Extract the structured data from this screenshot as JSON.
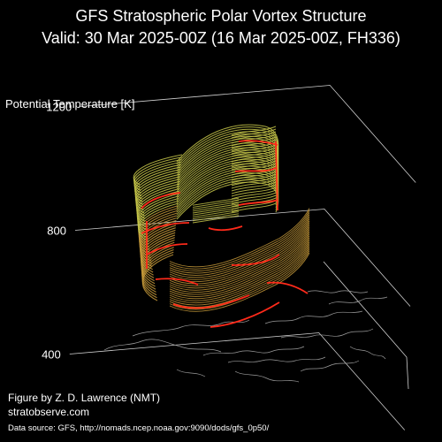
{
  "title_line1": "GFS Stratospheric Polar Vortex Structure",
  "title_line2": "Valid: 30 Mar 2025-00Z  (16 Mar 2025-00Z, FH336)",
  "credit_line1": "Figure by Z. D. Lawrence (NMT)",
  "credit_line2": "stratobserve.com",
  "data_source": "Data source: GFS, http://nomads.ncep.noaa.gov:9090/dods/gfs_0p50/",
  "colors": {
    "background": "#000000",
    "grid": "#d0d0d0",
    "coast": "#9a9a9a",
    "vortex_low": "#c79a3a",
    "vortex_high": "#c8c84a",
    "vortex_edge": "#ff2a1a"
  },
  "chart_data": {
    "type": "3d-isosurface",
    "zlabel": "Potential Temperature [K]",
    "z_ticks": [
      400,
      800,
      1200
    ],
    "zlim": [
      350,
      1250
    ],
    "grid": true
  }
}
